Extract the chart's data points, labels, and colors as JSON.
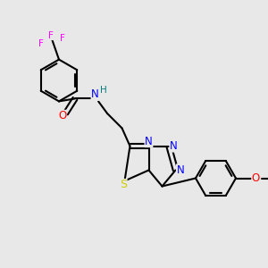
{
  "bg_color": "#e8e8e8",
  "atom_colors": {
    "C": "#000000",
    "N": "#0000ff",
    "O": "#ff0000",
    "S": "#cccc00",
    "F": "#ff00ff",
    "H": "#008080"
  },
  "bond_color": "#000000",
  "bond_width": 1.5,
  "figsize": [
    3.0,
    3.0
  ],
  "dpi": 100
}
